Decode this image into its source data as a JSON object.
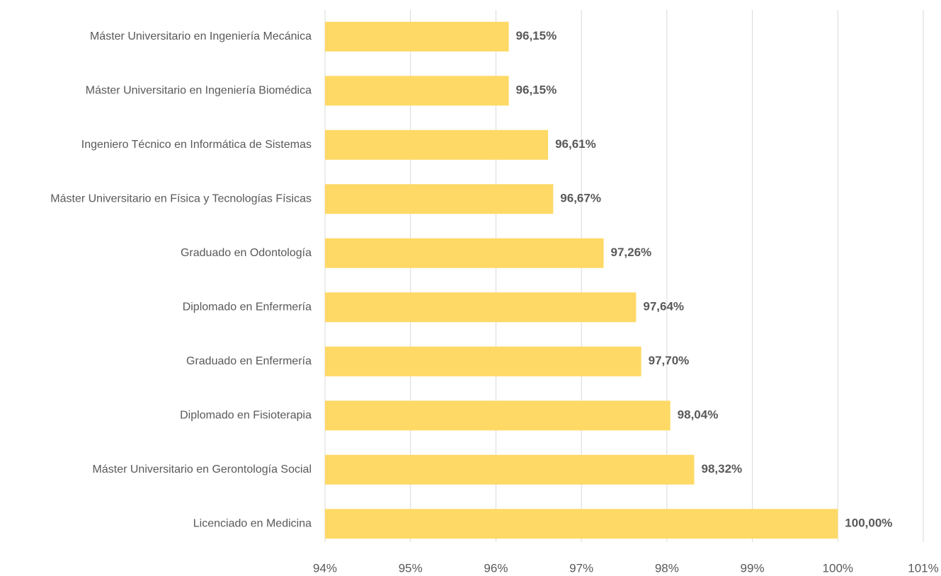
{
  "chart_data": {
    "type": "barh",
    "categories": [
      "Máster Universitario en Ingeniería Mecánica",
      "Máster Universitario en Ingeniería Biomédica",
      "Ingeniero Técnico en Informática de Sistemas",
      "Máster Universitario en Física y Tecnologías Físicas",
      "Graduado en Odontología",
      "Diplomado en Enfermería",
      "Graduado en Enfermería",
      "Diplomado en Fisioterapia",
      "Máster Universitario en Gerontología Social",
      "Licenciado en Medicina"
    ],
    "values": [
      96.15,
      96.15,
      96.61,
      96.67,
      97.26,
      97.64,
      97.7,
      98.04,
      98.32,
      100.0
    ],
    "value_labels": [
      "96,15%",
      "96,15%",
      "96,61%",
      "96,67%",
      "97,26%",
      "97,64%",
      "97,70%",
      "98,04%",
      "98,32%",
      "100,00%"
    ],
    "color": "#ffd966",
    "xlim": [
      94,
      101
    ],
    "xticks": [
      {
        "value": 94,
        "label": "94%"
      },
      {
        "value": 95,
        "label": "95%"
      },
      {
        "value": 96,
        "label": "96%"
      },
      {
        "value": 97,
        "label": "97%"
      },
      {
        "value": 98,
        "label": "98%"
      },
      {
        "value": 99,
        "label": "99%"
      },
      {
        "value": 100,
        "label": "100%"
      },
      {
        "value": 101,
        "label": "101%"
      }
    ],
    "grid": true
  }
}
